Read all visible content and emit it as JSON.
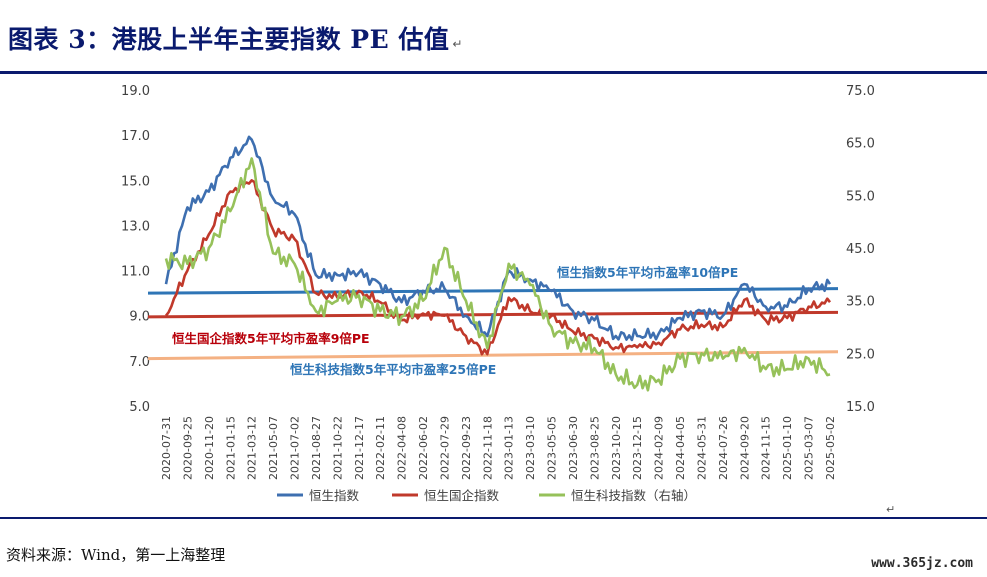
{
  "header": {
    "title": "图表 3：港股上半年主要指数 PE 估值",
    "para_mark": "↵"
  },
  "footer": {
    "source": "资料来源：Wind，第一上海整理",
    "watermark": "www.365jz.com"
  },
  "colors": {
    "hsi": "#3e6fb0",
    "hscei": "#c0392b",
    "hstech": "#96c15a",
    "avg_hsi": "#2e75b6",
    "avg_hscei": "#c0392b",
    "avg_hstech": "#f4b183",
    "title": "#0a1a6e"
  },
  "chart_data": {
    "type": "line",
    "title": "",
    "y_left": {
      "min": 5.0,
      "max": 19.0,
      "ticks": [
        "5.0",
        "7.0",
        "9.0",
        "11.0",
        "13.0",
        "15.0",
        "17.0",
        "19.0"
      ]
    },
    "y_right": {
      "min": 15.0,
      "max": 75.0,
      "ticks": [
        "15.0",
        "25.0",
        "35.0",
        "45.0",
        "55.0",
        "65.0",
        "75.0"
      ]
    },
    "x_labels": [
      "2020-07-31",
      "2020-09-25",
      "2020-11-20",
      "2021-01-15",
      "2021-03-12",
      "2021-05-07",
      "2021-07-02",
      "2021-08-27",
      "2021-10-22",
      "2021-12-17",
      "2022-02-11",
      "2022-04-08",
      "2022-06-02",
      "2022-07-29",
      "2022-09-23",
      "2022-11-18",
      "2023-01-13",
      "2023-03-10",
      "2023-05-05",
      "2023-06-30",
      "2023-08-25",
      "2023-10-20",
      "2023-12-15",
      "2024-02-09",
      "2024-04-05",
      "2024-05-31",
      "2024-07-26",
      "2024-09-20",
      "2024-11-15",
      "2025-01-10",
      "2025-03-07",
      "2025-05-02"
    ],
    "series": [
      {
        "name": "恒生指数",
        "axis": "left",
        "values": [
          10.4,
          13.8,
          14.5,
          16.0,
          16.8,
          14.2,
          13.5,
          10.8,
          10.8,
          10.9,
          10.4,
          9.6,
          10.1,
          10.2,
          9.0,
          8.1,
          11.0,
          10.6,
          10.1,
          9.2,
          8.8,
          8.1,
          8.1,
          8.2,
          8.9,
          9.2,
          9.0,
          10.4,
          9.4,
          9.4,
          10.2,
          10.4
        ]
      },
      {
        "name": "恒生国企指数",
        "axis": "left",
        "values": [
          9.0,
          11.0,
          12.6,
          14.5,
          15.0,
          12.8,
          12.4,
          10.0,
          9.8,
          10.1,
          9.6,
          8.8,
          9.1,
          9.0,
          8.1,
          7.3,
          9.8,
          9.2,
          9.0,
          8.3,
          8.0,
          7.6,
          7.6,
          7.8,
          8.4,
          8.6,
          8.5,
          9.7,
          8.8,
          8.9,
          9.4,
          9.6
        ]
      },
      {
        "name": "恒生科技指数（右轴）",
        "axis": "right",
        "values": [
          43,
          42,
          45,
          52,
          62,
          44,
          42,
          33,
          35,
          36,
          33,
          32,
          35,
          45,
          35,
          26,
          42,
          38,
          30,
          27,
          26,
          21,
          19,
          20,
          24,
          25,
          24,
          26,
          22,
          22,
          24,
          21
        ]
      }
    ],
    "reference_lines": [
      {
        "label": "恒生指数5年平均市盈率10倍PE",
        "axis": "left",
        "start": 10.0,
        "end": 10.2
      },
      {
        "label": "恒生国企指数5年平均市盈率9倍PE",
        "axis": "left",
        "start": 8.95,
        "end": 9.15
      },
      {
        "label": "恒生科技指数5年平均市盈率25倍PE",
        "axis": "right",
        "start": 24.0,
        "end": 25.3
      }
    ],
    "legend_position": "bottom",
    "grid": false
  }
}
